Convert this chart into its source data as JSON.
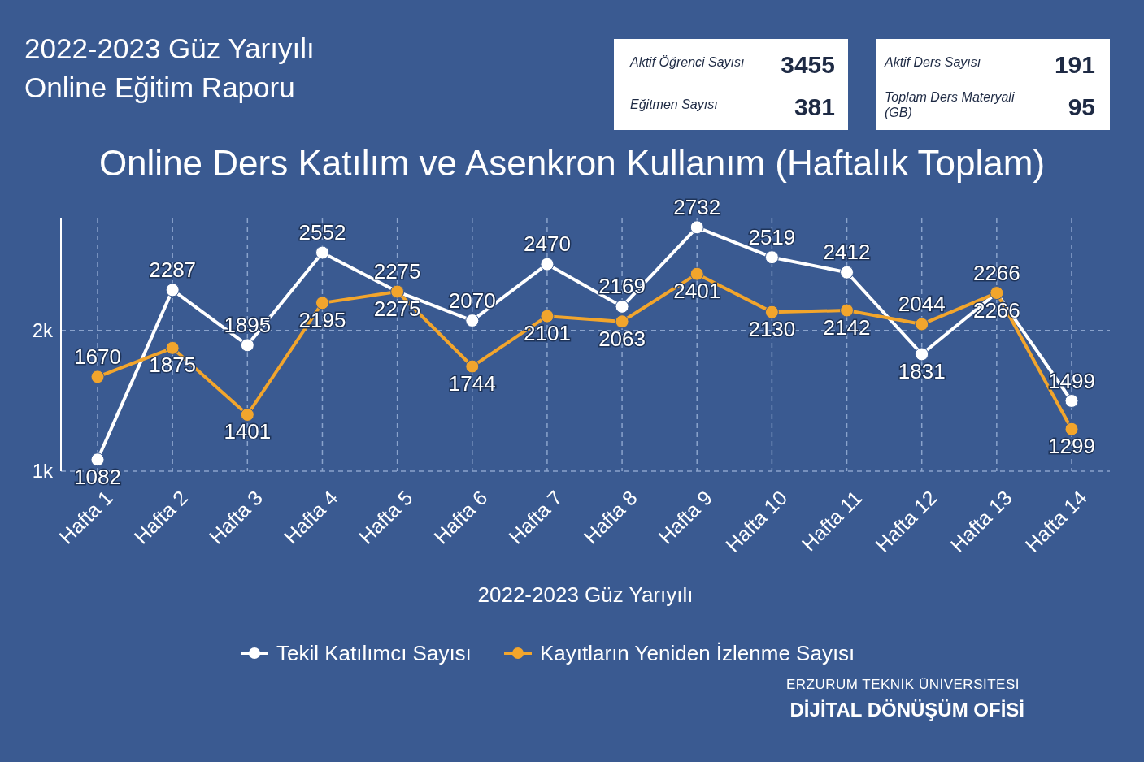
{
  "chart_data": {
    "type": "line",
    "title": "Online Ders Katılım ve Asenkron Kullanım (Haftalık Toplam)",
    "xlabel": "2022-2023 Güz Yarıyılı",
    "categories": [
      "Hafta 1",
      "Hafta 2",
      "Hafta 3",
      "Hafta 4",
      "Hafta 5",
      "Hafta 6",
      "Hafta 7",
      "Hafta 8",
      "Hafta 9",
      "Hafta 10",
      "Hafta 11",
      "Hafta 12",
      "Hafta 13",
      "Hafta 14"
    ],
    "series": [
      {
        "name": "Tekil Katılımcı Sayısı",
        "color": "#ffffff",
        "values": [
          1082,
          2287,
          1895,
          2552,
          2275,
          2070,
          2470,
          2169,
          2732,
          2519,
          2412,
          1831,
          2266,
          1499
        ]
      },
      {
        "name": "Kayıtların Yeniden İzlenme Sayısı",
        "color": "#f2a52c",
        "values": [
          1670,
          1875,
          1401,
          2195,
          2275,
          1744,
          2101,
          2063,
          2401,
          2130,
          2142,
          2044,
          2266,
          1299
        ]
      }
    ],
    "ylim": [
      1000,
      2800
    ],
    "yticks": [
      {
        "value": 1000,
        "label": "1k"
      },
      {
        "value": 2000,
        "label": "2k"
      }
    ],
    "grid": true,
    "legend": "bottom",
    "marker": "circle",
    "line_style": "solid",
    "data_labels": true,
    "annotations": [
      "2022-2023 Güz Yarıyılı",
      "Online Eğitim Raporu",
      "Aktif Öğrenci Sayısı",
      "3455",
      "Eğitmen Sayısı",
      "381",
      "Aktif Ders Sayısı",
      "191",
      "Toplam Ders Materyali (GB)",
      "95",
      "ERZURUM TEKNİK ÜNİVERSİTESİ",
      "DİJİTAL DÖNÜŞÜM OFİSİ"
    ]
  }
}
